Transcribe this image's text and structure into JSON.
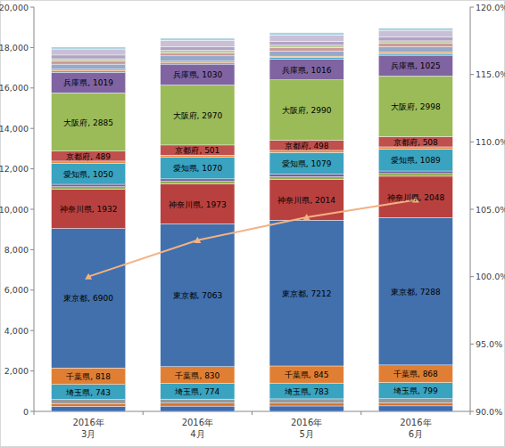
{
  "chart_data": {
    "type": "bar",
    "stacked": true,
    "grid": false,
    "data_labels": true,
    "categories": [
      "2016年\n3月",
      "2016年\n4月",
      "2016年\n5月",
      "2016年\n6月"
    ],
    "ylim": [
      0,
      20000
    ],
    "yticks": [
      0,
      {
        "value": 2000,
        "label": "2,000"
      },
      {
        "value": 4000,
        "label": "4,000"
      },
      {
        "value": 6000,
        "label": "6,000"
      },
      {
        "value": 8000,
        "label": "8,000"
      },
      {
        "value": 10000,
        "label": "10,000"
      },
      {
        "value": 12000,
        "label": "12,000"
      },
      {
        "value": 14000,
        "label": "14,000"
      },
      {
        "value": 16000,
        "label": "16,000"
      },
      {
        "value": 18000,
        "label": "18,000"
      },
      {
        "value": 20000,
        "label": "20,000"
      }
    ],
    "y2lim": [
      90,
      120
    ],
    "y2ticks": [
      {
        "value": 90,
        "label": "90.0%"
      },
      {
        "value": 95,
        "label": "95.0%"
      },
      {
        "value": 100,
        "label": "100.0%"
      },
      {
        "value": 105,
        "label": "105.0%"
      },
      {
        "value": 110,
        "label": "110.0%"
      },
      {
        "value": 115,
        "label": "115.0%"
      },
      {
        "value": 120,
        "label": "120.0%"
      }
    ],
    "series": [
      {
        "color": "#3f6cae",
        "values": [
          250,
          260,
          265,
          270
        ]
      },
      {
        "color": "#d9742d",
        "values": [
          140,
          145,
          148,
          150
        ]
      },
      {
        "color": "#999999",
        "values": [
          200,
          205,
          207,
          210
        ]
      },
      {
        "name": "埼玉県",
        "color": "#3aa3bf",
        "values": [
          743,
          774,
          783,
          799
        ],
        "value_labels": [
          "埼玉県, 743",
          "埼玉県, 774",
          "埼玉県, 783",
          "埼玉県, 799"
        ]
      },
      {
        "name": "千葉県",
        "color": "#e07f34",
        "values": [
          818,
          830,
          845,
          868
        ],
        "value_labels": [
          "千葉県, 818",
          "千葉県, 830",
          "千葉県, 845",
          "千葉県, 868"
        ]
      },
      {
        "name": "東京都",
        "color": "#4170ad",
        "values": [
          6900,
          7063,
          7212,
          7288
        ],
        "value_labels": [
          "東京都, 6900",
          "東京都, 7063",
          "東京都, 7212",
          "東京都, 7288"
        ]
      },
      {
        "name": "神奈川県",
        "color": "#b8413f",
        "values": [
          1932,
          1973,
          2014,
          2048
        ],
        "value_labels": [
          "神奈川県, 1932",
          "神奈川県, 1973",
          "神奈川県, 2014",
          "神奈川県, 2048"
        ]
      },
      {
        "color": "#8fb04f",
        "values": [
          130,
          132,
          134,
          136
        ]
      },
      {
        "color": "#7a5f9c",
        "values": [
          120,
          122,
          123,
          125
        ]
      },
      {
        "name": "愛知県",
        "color": "#3aa3bf",
        "values": [
          1050,
          1070,
          1079,
          1089
        ],
        "value_labels": [
          "愛知県, 1050",
          "愛知県, 1070",
          "愛知県, 1079",
          "愛知県, 1089"
        ]
      },
      {
        "color": "#e98a3f",
        "values": [
          100,
          101,
          102,
          103
        ]
      },
      {
        "name": "京都府",
        "color": "#c0504d",
        "values": [
          489,
          501,
          498,
          508
        ],
        "value_labels": [
          "京都府, 489",
          "京都府, 501",
          "京都府, 498",
          "京都府, 508"
        ]
      },
      {
        "name": "大阪府",
        "color": "#9bbb59",
        "values": [
          2885,
          2970,
          2990,
          2998
        ],
        "value_labels": [
          "大阪府, 2885",
          "大阪府, 2970",
          "大阪府, 2990",
          "大阪府, 2998"
        ]
      },
      {
        "name": "兵庫県",
        "color": "#8064a2",
        "values": [
          1019,
          1030,
          1016,
          1025
        ],
        "value_labels": [
          "兵庫県, 1019",
          "兵庫県, 1030",
          "兵庫県, 1016",
          "兵庫県, 1025"
        ]
      },
      {
        "color": "#4bacc6",
        "values": [
          80,
          82,
          83,
          84
        ]
      },
      {
        "color": "#f79646",
        "values": [
          70,
          72,
          73,
          74
        ]
      },
      {
        "color": "#95a9c9",
        "values": [
          250,
          255,
          260,
          265
        ]
      },
      {
        "color": "#cc9a99",
        "values": [
          150,
          155,
          160,
          162
        ]
      },
      {
        "color": "#bccd9e",
        "values": [
          120,
          122,
          125,
          128
        ]
      },
      {
        "color": "#b1a3c5",
        "values": [
          180,
          185,
          188,
          190
        ]
      },
      {
        "color": "#c9c0d8",
        "values": [
          300,
          310,
          320,
          330
        ]
      },
      {
        "color": "#a9d3e2",
        "values": [
          100,
          105,
          110,
          115
        ]
      },
      {
        "type": "line",
        "axis": "y2",
        "color": "#f4b183",
        "marker": "triangle",
        "values": [
          100.0,
          102.7,
          104.4,
          105.7
        ]
      }
    ]
  }
}
